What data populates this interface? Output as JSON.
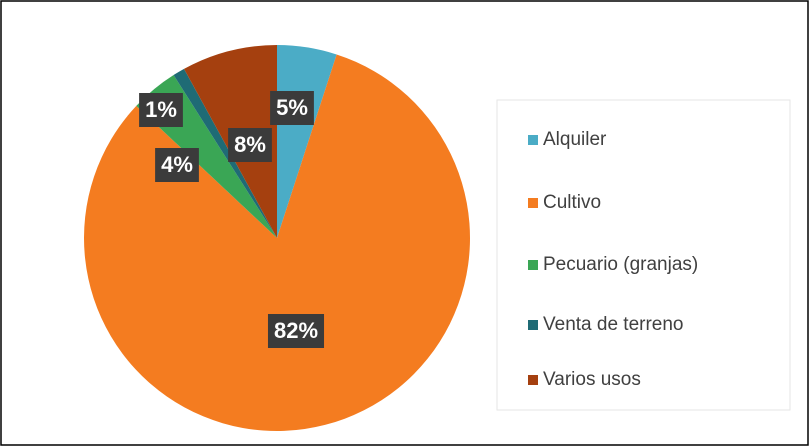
{
  "chart_data": {
    "type": "pie",
    "categories": [
      "Alquiler",
      "Cultivo",
      "Pecuario (granjas)",
      "Venta de terreno",
      "Varios usos"
    ],
    "values": [
      5,
      82,
      4,
      1,
      8
    ],
    "value_labels": [
      "5%",
      "82%",
      "4%",
      "1%",
      "8%"
    ],
    "colors": [
      "#4bacc6",
      "#f47c20",
      "#3aa655",
      "#1f6b75",
      "#a5400f"
    ],
    "legend": "right"
  }
}
